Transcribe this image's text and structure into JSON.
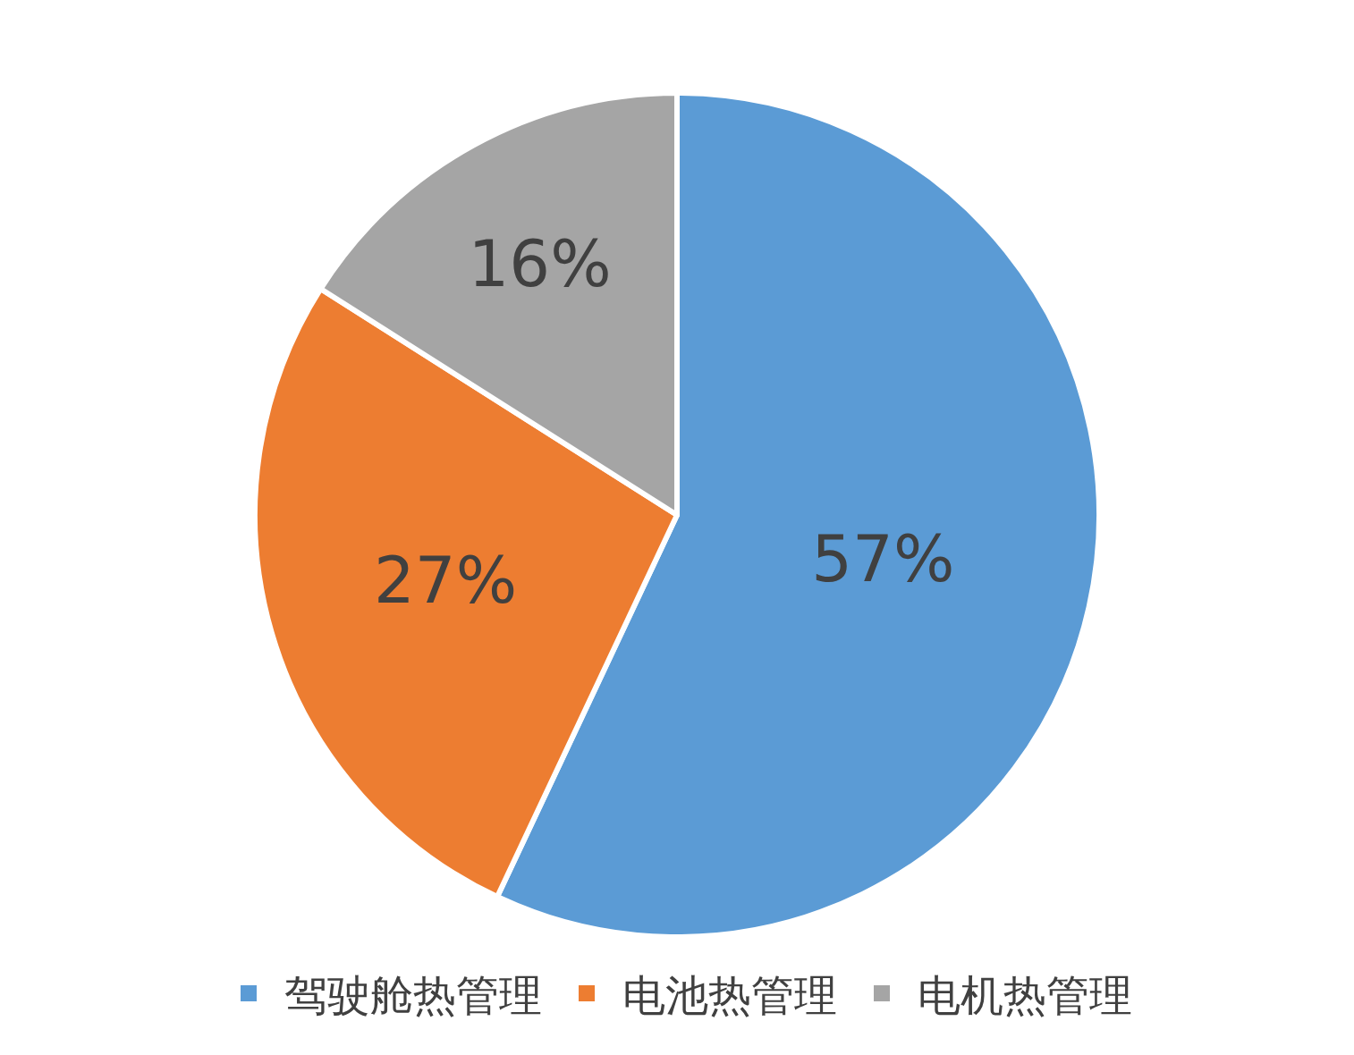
{
  "chart_data": {
    "type": "pie",
    "categories": [
      "驾驶舱热管理",
      "电池热管理",
      "电机热管理"
    ],
    "values": [
      57,
      27,
      16
    ],
    "colors": [
      "#5b9bd5",
      "#ed7d31",
      "#a5a5a5"
    ],
    "value_labels": [
      "57%",
      "27%",
      "16%"
    ],
    "legend": "bottom"
  }
}
